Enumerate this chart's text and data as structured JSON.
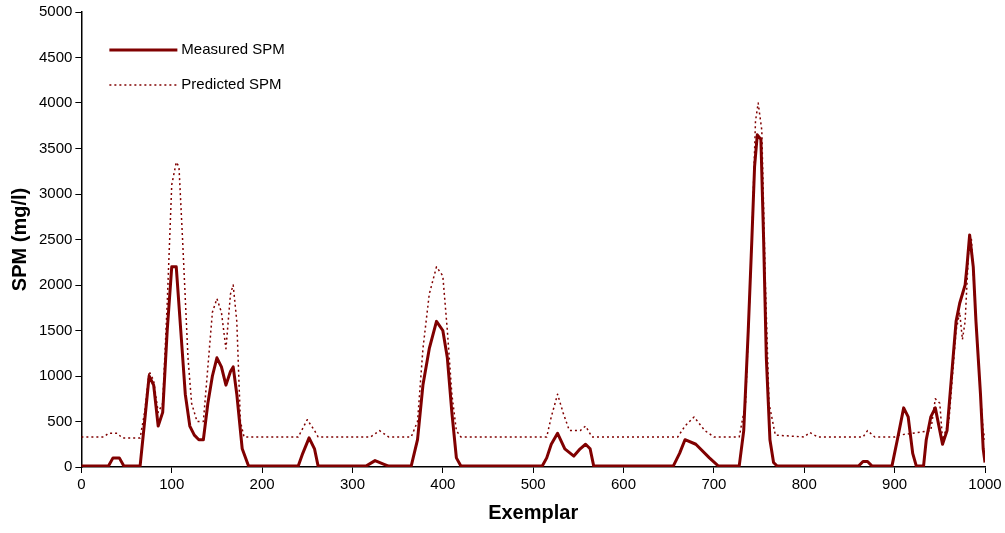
{
  "chart_data": {
    "type": "line",
    "xlabel": "Exemplar",
    "ylabel": "SPM (mg/l)",
    "xlim": [
      0,
      1000
    ],
    "xticks": [
      0,
      100,
      200,
      300,
      400,
      500,
      600,
      700,
      800,
      900,
      1000
    ],
    "ylim": [
      0,
      5000
    ],
    "yticks": [
      0,
      500,
      1000,
      1500,
      2000,
      2500,
      3000,
      3500,
      4000,
      4500,
      5000
    ],
    "grid": false,
    "legend": "top left",
    "marker": "none",
    "series": [
      {
        "name": "Measured SPM",
        "color": "#800000",
        "line_style": "solid",
        "x": [
          0,
          30,
          35,
          42,
          47,
          65,
          70,
          75,
          80,
          85,
          90,
          95,
          100,
          105,
          110,
          115,
          120,
          125,
          130,
          135,
          140,
          145,
          150,
          155,
          160,
          165,
          168,
          172,
          178,
          185,
          240,
          245,
          252,
          258,
          262,
          315,
          325,
          335,
          340,
          365,
          372,
          378,
          385,
          393,
          400,
          405,
          410,
          415,
          420,
          510,
          515,
          520,
          527,
          535,
          545,
          552,
          558,
          563,
          567,
          655,
          662,
          668,
          680,
          695,
          705,
          728,
          733,
          738,
          742,
          745,
          748,
          752,
          755,
          758,
          762,
          766,
          770,
          860,
          865,
          870,
          875,
          897,
          903,
          910,
          915,
          920,
          924,
          932,
          935,
          940,
          945,
          950,
          953,
          958,
          963,
          968,
          972,
          978,
          980,
          983,
          987,
          990,
          995,
          998,
          1000
        ],
        "values": [
          10,
          10,
          100,
          100,
          10,
          10,
          500,
          1000,
          900,
          450,
          600,
          1500,
          2200,
          2200,
          1500,
          800,
          450,
          350,
          300,
          300,
          700,
          1000,
          1200,
          1100,
          900,
          1050,
          1100,
          800,
          200,
          10,
          10,
          150,
          320,
          200,
          10,
          10,
          70,
          30,
          10,
          10,
          300,
          900,
          1300,
          1600,
          1500,
          1200,
          600,
          100,
          10,
          10,
          100,
          250,
          370,
          200,
          120,
          200,
          250,
          200,
          10,
          10,
          150,
          300,
          250,
          100,
          10,
          10,
          400,
          1500,
          2500,
          3300,
          3650,
          3600,
          2500,
          1200,
          300,
          50,
          10,
          10,
          60,
          60,
          10,
          10,
          300,
          650,
          550,
          150,
          10,
          10,
          300,
          550,
          650,
          400,
          250,
          400,
          1000,
          1600,
          1800,
          2000,
          2200,
          2550,
          2200,
          1600,
          800,
          200,
          50
        ]
      },
      {
        "name": "Predicted SPM",
        "color": "#800000",
        "line_style": "dotted",
        "x": [
          0,
          25,
          30,
          40,
          45,
          65,
          70,
          75,
          80,
          85,
          90,
          95,
          100,
          105,
          108,
          112,
          118,
          122,
          128,
          135,
          140,
          145,
          150,
          155,
          160,
          165,
          168,
          172,
          176,
          180,
          240,
          250,
          258,
          262,
          320,
          330,
          340,
          365,
          372,
          378,
          385,
          393,
          400,
          405,
          410,
          415,
          420,
          515,
          520,
          527,
          533,
          540,
          552,
          558,
          565,
          660,
          668,
          678,
          690,
          700,
          728,
          735,
          742,
          746,
          749,
          753,
          757,
          761,
          768,
          800,
          806,
          815,
          865,
          870,
          878,
          900,
          905,
          940,
          945,
          950,
          953,
          960,
          968,
          972,
          975,
          978,
          982,
          985,
          990,
          995,
          998,
          1000
        ],
        "values": [
          330,
          330,
          370,
          370,
          320,
          320,
          600,
          1050,
          950,
          600,
          700,
          1800,
          3100,
          3350,
          3300,
          2500,
          1200,
          700,
          500,
          500,
          1100,
          1700,
          1850,
          1700,
          1300,
          1900,
          2000,
          1600,
          500,
          330,
          330,
          520,
          400,
          330,
          330,
          400,
          330,
          330,
          500,
          1300,
          1900,
          2200,
          2100,
          1500,
          800,
          400,
          330,
          330,
          550,
          800,
          600,
          400,
          400,
          450,
          330,
          330,
          450,
          550,
          400,
          330,
          330,
          700,
          2500,
          3800,
          4000,
          3700,
          2000,
          700,
          350,
          330,
          380,
          330,
          330,
          400,
          330,
          330,
          350,
          400,
          750,
          700,
          300,
          500,
          1500,
          1700,
          1400,
          1600,
          2400,
          2500,
          1600,
          800,
          400,
          300
        ]
      }
    ]
  }
}
